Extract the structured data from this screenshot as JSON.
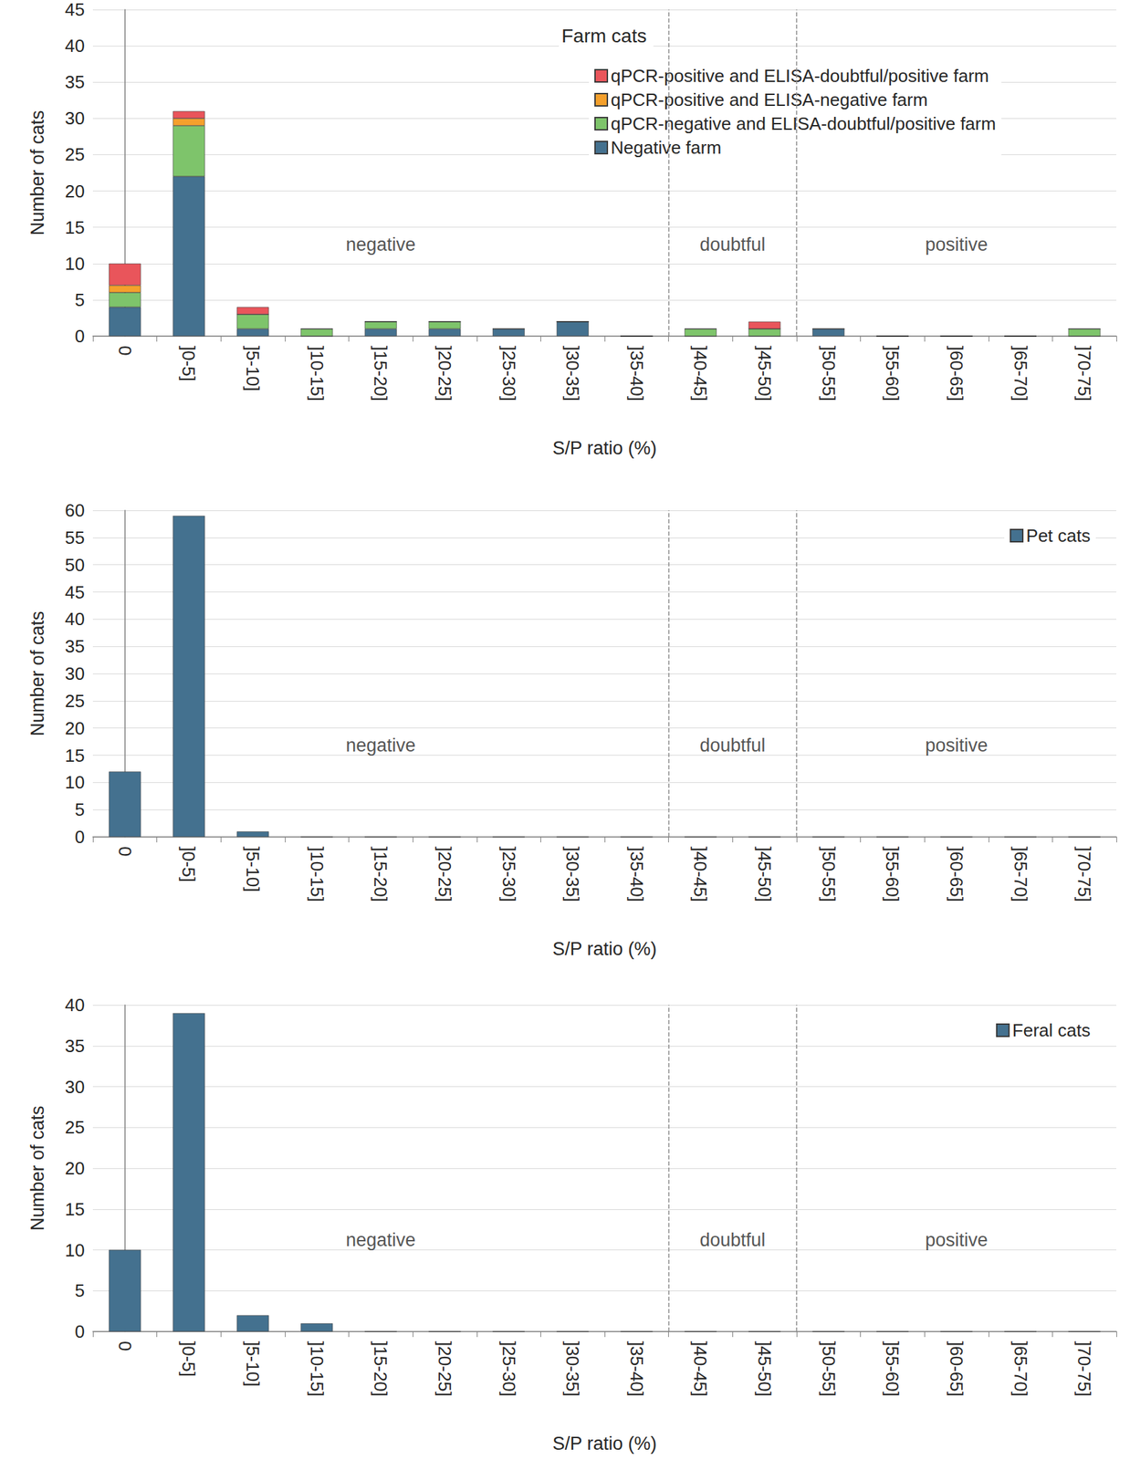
{
  "chart_data": [
    {
      "type": "bar",
      "title": "Farm cats",
      "stacked": true,
      "grid": true,
      "legend": "top-right",
      "x_label": "S/P ratio (%)",
      "y_label": "Number of cats",
      "categories": [
        "0",
        "]0-5]",
        "]5-10]",
        "]10-15]",
        "]15-20]",
        "]20-25]",
        "]25-30]",
        "]30-35]",
        "]35-40]",
        "]40-45]",
        "]45-50]",
        "]50-55]",
        "]55-60]",
        "]60-65]",
        "]65-70]",
        "]70-75]"
      ],
      "series": [
        {
          "name": "Negative farm",
          "color": "#44718f",
          "values": [
            4,
            22,
            1,
            0,
            1,
            1,
            1,
            2,
            0,
            0,
            0,
            1,
            0,
            0,
            0,
            0
          ]
        },
        {
          "name": "qPCR-negative and ELISA-doubtful/positive farm",
          "color": "#7ec46b",
          "values": [
            2,
            7,
            2,
            1,
            1,
            1,
            0,
            0,
            0,
            1,
            1,
            0,
            0,
            0,
            0,
            1
          ]
        },
        {
          "name": "qPCR-positive and ELISA-negative farm",
          "color": "#f5a02c",
          "values": [
            1,
            1,
            0,
            0,
            0,
            0,
            0,
            0,
            0,
            0,
            0,
            0,
            0,
            0,
            0,
            0
          ]
        },
        {
          "name": "qPCR-positive and ELISA-doubtful/positive farm",
          "color": "#e9555b",
          "values": [
            3,
            1,
            1,
            0,
            0,
            0,
            0,
            0,
            0,
            0,
            1,
            0,
            0,
            0,
            0,
            0
          ]
        }
      ],
      "ylim": [
        0,
        45
      ],
      "yticks": [
        0,
        5,
        10,
        15,
        20,
        25,
        30,
        35,
        40,
        45
      ],
      "cutoffs": [
        40,
        50
      ],
      "annotations": [
        "negative",
        "doubtful",
        "positive"
      ]
    },
    {
      "type": "bar",
      "grid": true,
      "legend": "top-right",
      "x_label": "S/P ratio (%)",
      "y_label": "Number of cats",
      "categories": [
        "0",
        "]0-5]",
        "]5-10]",
        "]10-15]",
        "]15-20]",
        "]20-25]",
        "]25-30]",
        "]30-35]",
        "]35-40]",
        "]40-45]",
        "]45-50]",
        "]50-55]",
        "]55-60]",
        "]60-65]",
        "]65-70]",
        "]70-75]"
      ],
      "series": [
        {
          "name": "Pet cats",
          "color": "#44718f",
          "values": [
            12,
            59,
            1,
            0,
            0,
            0,
            0,
            0,
            0,
            0,
            0,
            0,
            0,
            0,
            0,
            0
          ]
        }
      ],
      "ylim": [
        0,
        60
      ],
      "yticks": [
        0,
        5,
        10,
        15,
        20,
        25,
        30,
        35,
        40,
        45,
        50,
        55,
        60
      ],
      "cutoffs": [
        40,
        50
      ],
      "annotations": [
        "negative",
        "doubtful",
        "positive"
      ]
    },
    {
      "type": "bar",
      "grid": true,
      "legend": "top-right",
      "x_label": "S/P ratio (%)",
      "y_label": "Number of cats",
      "categories": [
        "0",
        "]0-5]",
        "]5-10]",
        "]10-15]",
        "]15-20]",
        "]20-25]",
        "]25-30]",
        "]30-35]",
        "]35-40]",
        "]40-45]",
        "]45-50]",
        "]50-55]",
        "]55-60]",
        "]60-65]",
        "]65-70]",
        "]70-75]"
      ],
      "series": [
        {
          "name": "Feral cats",
          "color": "#44718f",
          "values": [
            10,
            39,
            2,
            1,
            0,
            0,
            0,
            0,
            0,
            0,
            0,
            0,
            0,
            0,
            0,
            0
          ]
        }
      ],
      "ylim": [
        0,
        40
      ],
      "yticks": [
        0,
        5,
        10,
        15,
        20,
        25,
        30,
        35,
        40
      ],
      "cutoffs": [
        40,
        50
      ],
      "annotations": [
        "negative",
        "doubtful",
        "positive"
      ]
    }
  ]
}
